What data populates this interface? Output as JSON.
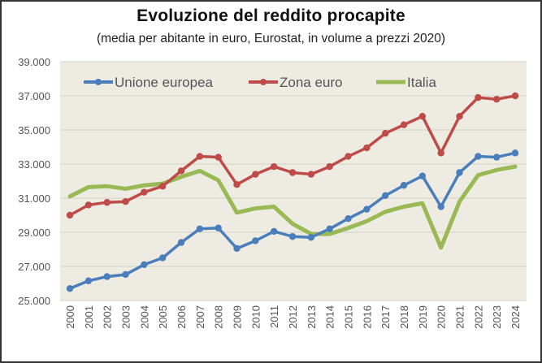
{
  "chart_data": {
    "type": "line",
    "title": "Evoluzione  del reddito procapite",
    "subtitle": "(media per abitante in euro, Eurostat, in volume a prezzi 2020)",
    "xlabel": "",
    "ylabel": "",
    "ylim": [
      25000,
      39000
    ],
    "yticks": [
      25000,
      27000,
      29000,
      31000,
      33000,
      35000,
      37000,
      39000
    ],
    "ytick_labels": [
      "25.000",
      "27.000",
      "29.000",
      "31.000",
      "33.000",
      "35.000",
      "37.000",
      "39.000"
    ],
    "grid": true,
    "legend_position": "top-left",
    "x": [
      "2000",
      "2001",
      "2002",
      "2003",
      "2004",
      "2005",
      "2006",
      "2007",
      "2008",
      "2009",
      "2010",
      "2011",
      "2012",
      "2013",
      "2014",
      "2015",
      "2016",
      "2017",
      "2018",
      "2019",
      "2020",
      "2021",
      "2022",
      "2023",
      "2024"
    ],
    "series": [
      {
        "name": "Unione europea",
        "color": "#4a7ebb",
        "markers": true,
        "values": [
          25700,
          26150,
          26400,
          26520,
          27100,
          27500,
          28400,
          29200,
          29250,
          28050,
          28500,
          29050,
          28750,
          28700,
          29200,
          29800,
          30350,
          31150,
          31750,
          32300,
          30500,
          32500,
          33450,
          33400,
          33650
        ]
      },
      {
        "name": "Zona euro",
        "color": "#be4b48",
        "markers": true,
        "values": [
          30000,
          30600,
          30750,
          30800,
          31350,
          31700,
          32600,
          33450,
          33400,
          31800,
          32400,
          32850,
          32500,
          32400,
          32850,
          33450,
          33950,
          34800,
          35300,
          35800,
          33650,
          35800,
          36900,
          36800,
          37000
        ]
      },
      {
        "name": "Italia",
        "color": "#98b954",
        "markers": false,
        "values": [
          31100,
          31650,
          31700,
          31550,
          31750,
          31850,
          32250,
          32600,
          32050,
          30150,
          30400,
          30500,
          29500,
          28900,
          28900,
          29250,
          29650,
          30200,
          30500,
          30700,
          28100,
          30800,
          32350,
          32650,
          32850
        ]
      }
    ]
  },
  "colors": {
    "plot_background": "#eeebe2",
    "gridline": "#d9d6cc"
  }
}
